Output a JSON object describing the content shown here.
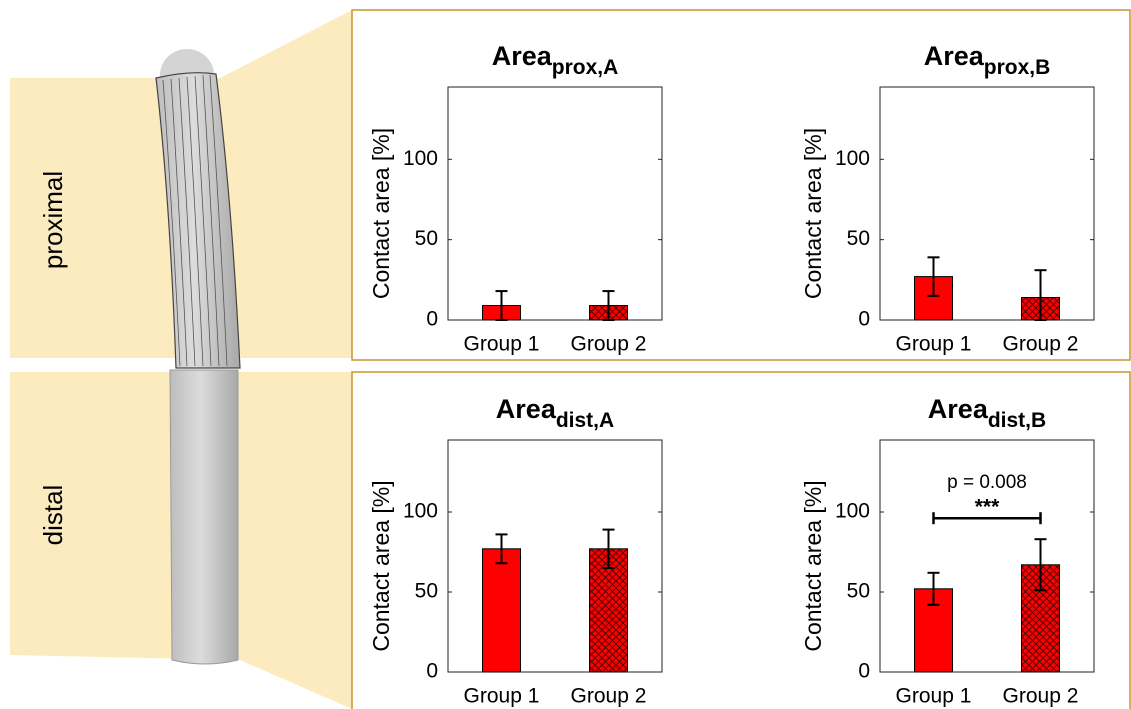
{
  "regions": [
    "proximal",
    "distal"
  ],
  "chart_data": [
    {
      "type": "bar",
      "title": "Area",
      "title_subscript": "prox,A",
      "ylabel": "Contact area [%]",
      "categories": [
        "Group 1",
        "Group 2"
      ],
      "values": [
        9,
        9
      ],
      "errors": [
        9,
        9
      ],
      "hatch": [
        false,
        true
      ],
      "color": "#ff0000",
      "ylim": [
        0,
        145
      ],
      "yticks": [
        0,
        50,
        100
      ]
    },
    {
      "type": "bar",
      "title": "Area",
      "title_subscript": "prox,B",
      "ylabel": "Contact area [%]",
      "categories": [
        "Group 1",
        "Group 2"
      ],
      "values": [
        27,
        14
      ],
      "errors": [
        12,
        17
      ],
      "hatch": [
        false,
        true
      ],
      "color": "#ff0000",
      "ylim": [
        0,
        145
      ],
      "yticks": [
        0,
        50,
        100
      ]
    },
    {
      "type": "bar",
      "title": "Area",
      "title_subscript": "dist,A",
      "ylabel": "Contact area [%]",
      "categories": [
        "Group 1",
        "Group 2"
      ],
      "values": [
        77,
        77
      ],
      "errors": [
        9,
        12
      ],
      "hatch": [
        false,
        true
      ],
      "color": "#ff0000",
      "ylim": [
        0,
        145
      ],
      "yticks": [
        0,
        50,
        100
      ]
    },
    {
      "type": "bar",
      "title": "Area",
      "title_subscript": "dist,B",
      "ylabel": "Contact area [%]",
      "categories": [
        "Group 1",
        "Group 2"
      ],
      "values": [
        52,
        67
      ],
      "errors": [
        10,
        16
      ],
      "hatch": [
        false,
        true
      ],
      "color": "#ff0000",
      "ylim": [
        0,
        145
      ],
      "yticks": [
        0,
        50,
        100
      ],
      "annotations": [
        "p = 0.008",
        "***"
      ]
    }
  ]
}
